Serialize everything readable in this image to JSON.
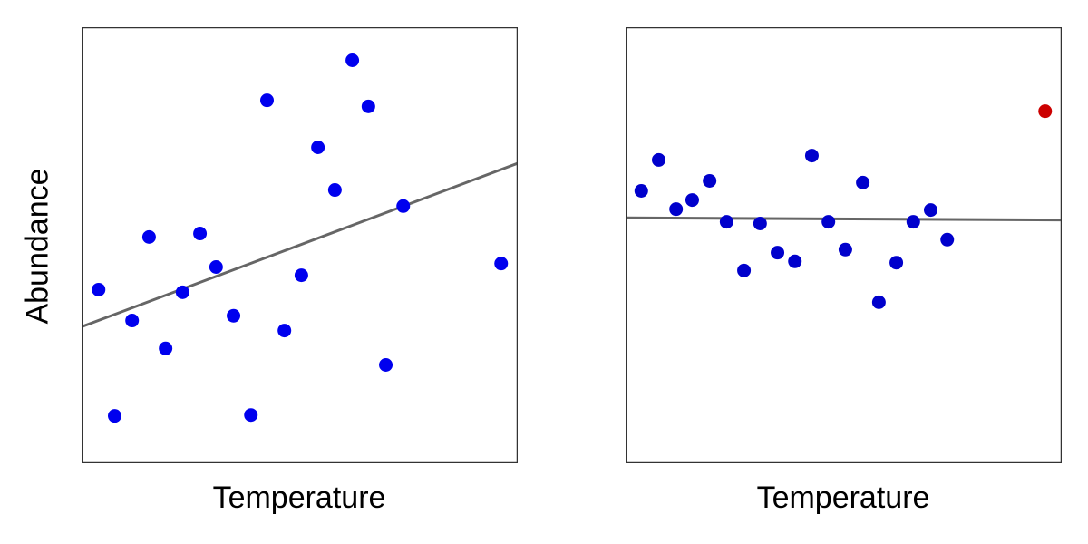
{
  "chart_data": [
    {
      "type": "scatter",
      "title": "",
      "xlabel": "Temperature",
      "ylabel": "Abundance",
      "ticks": "none",
      "grid": false,
      "legend": null,
      "xlim": [
        0,
        100
      ],
      "ylim": [
        0,
        100
      ],
      "point_color": "#0000EE",
      "line_color": "#666666",
      "points": [
        {
          "x": 3.8,
          "y": 39.8
        },
        {
          "x": 7.5,
          "y": 10.8
        },
        {
          "x": 11.5,
          "y": 32.7
        },
        {
          "x": 15.4,
          "y": 51.9
        },
        {
          "x": 19.2,
          "y": 26.3
        },
        {
          "x": 23.1,
          "y": 39.2
        },
        {
          "x": 27.1,
          "y": 52.7
        },
        {
          "x": 30.8,
          "y": 45.0
        },
        {
          "x": 34.8,
          "y": 33.8
        },
        {
          "x": 38.8,
          "y": 11.0
        },
        {
          "x": 42.5,
          "y": 83.3
        },
        {
          "x": 46.5,
          "y": 30.4
        },
        {
          "x": 50.4,
          "y": 43.1
        },
        {
          "x": 54.2,
          "y": 72.5
        },
        {
          "x": 58.1,
          "y": 62.7
        },
        {
          "x": 62.1,
          "y": 92.5
        },
        {
          "x": 65.8,
          "y": 81.9
        },
        {
          "x": 69.8,
          "y": 22.5
        },
        {
          "x": 73.8,
          "y": 59.0
        },
        {
          "x": 96.3,
          "y": 45.8
        }
      ],
      "regression_line": {
        "x": [
          0,
          100
        ],
        "y": [
          31.3,
          68.8
        ]
      }
    },
    {
      "type": "scatter",
      "title": "",
      "xlabel": "Temperature",
      "ylabel": "",
      "ticks": "none",
      "grid": false,
      "legend": null,
      "xlim": [
        0,
        100
      ],
      "ylim": [
        0,
        100
      ],
      "point_color": "#0000CC",
      "outlier_color": "#CC0000",
      "line_color": "#666666",
      "points": [
        {
          "x": 3.5,
          "y": 62.5
        },
        {
          "x": 7.5,
          "y": 69.6
        },
        {
          "x": 11.5,
          "y": 58.3
        },
        {
          "x": 15.2,
          "y": 60.4
        },
        {
          "x": 19.2,
          "y": 64.8
        },
        {
          "x": 23.1,
          "y": 55.4
        },
        {
          "x": 27.1,
          "y": 44.2
        },
        {
          "x": 30.8,
          "y": 55.0
        },
        {
          "x": 34.8,
          "y": 48.3
        },
        {
          "x": 38.8,
          "y": 46.3
        },
        {
          "x": 42.7,
          "y": 70.6
        },
        {
          "x": 46.5,
          "y": 55.4
        },
        {
          "x": 50.4,
          "y": 49.0
        },
        {
          "x": 54.4,
          "y": 64.4
        },
        {
          "x": 58.1,
          "y": 36.9
        },
        {
          "x": 62.1,
          "y": 46.0
        },
        {
          "x": 66.0,
          "y": 55.4
        },
        {
          "x": 70.0,
          "y": 58.1
        },
        {
          "x": 73.8,
          "y": 51.3
        }
      ],
      "outlier": {
        "x": 96.3,
        "y": 80.8
      },
      "regression_line": {
        "x": [
          0,
          100
        ],
        "y": [
          56.3,
          55.8
        ]
      }
    }
  ],
  "labels": {
    "y_axis": "Abundance",
    "x_axis_left": "Temperature",
    "x_axis_right": "Temperature"
  }
}
